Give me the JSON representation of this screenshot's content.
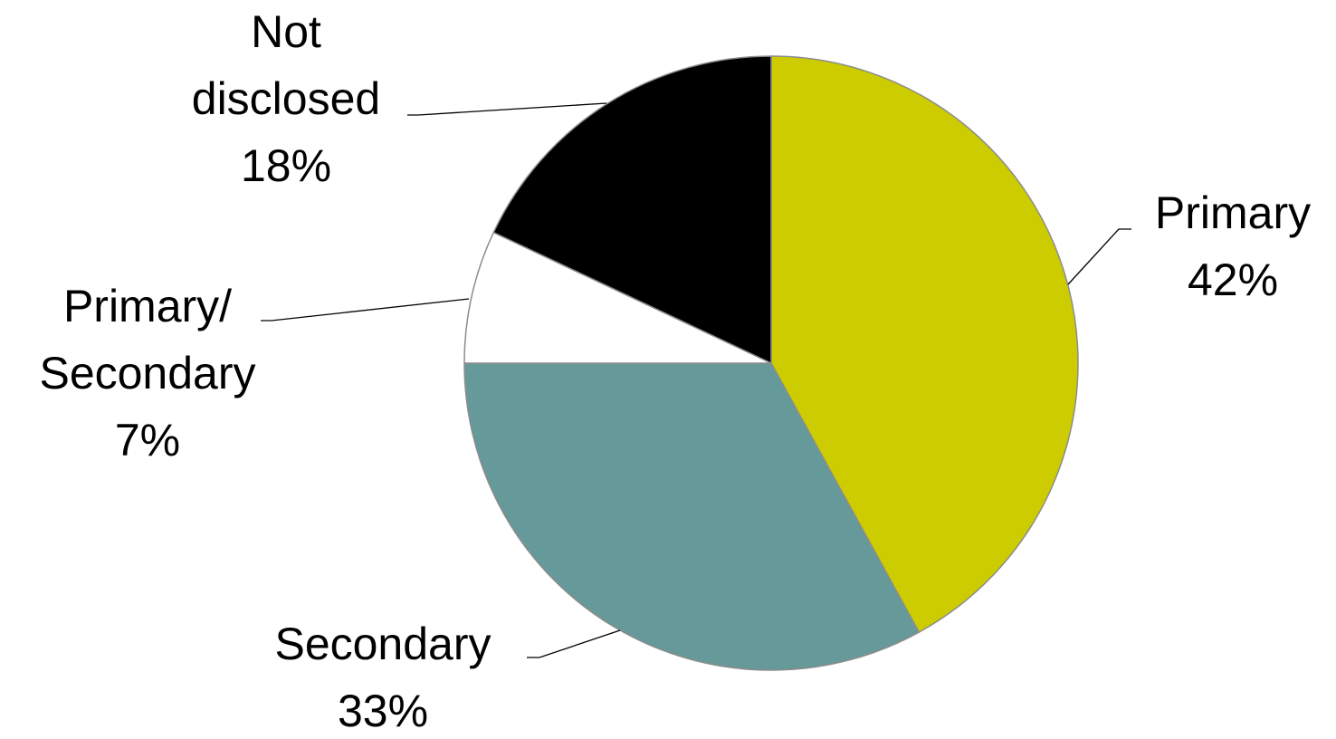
{
  "chart_data": {
    "type": "pie",
    "title": "",
    "legend": "none",
    "start_angle_deg": 0,
    "direction": "clockwise",
    "slices": [
      {
        "label": "Primary",
        "pct_label": "42%",
        "value": 42,
        "color": "#cccc00"
      },
      {
        "label": "Secondary",
        "pct_label": "33%",
        "value": 33,
        "color": "#669999"
      },
      {
        "label": "Primary/ Secondary",
        "pct_label": "7%",
        "value": 7,
        "color": "#ffffff"
      },
      {
        "label": "Not disclosed",
        "pct_label": "18%",
        "value": 18,
        "color": "#000000"
      }
    ]
  }
}
